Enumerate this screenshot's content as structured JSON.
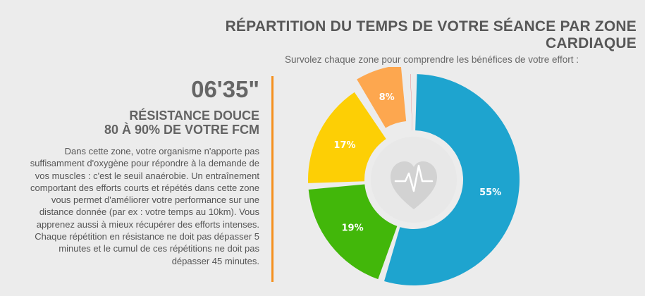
{
  "header": {
    "title": "RÉPARTITION DU TEMPS DE VOTRE SÉANCE PAR ZONE CARDIAQUE",
    "subtitle": "Survolez chaque zone pour comprendre les bénéfices de votre effort :"
  },
  "detail": {
    "time": "06'35\"",
    "zone_name": "RÉSISTANCE DOUCE",
    "zone_range": "80 À 90% DE VOTRE FCM",
    "description": "Dans cette zone, votre organisme n'apporte pas suffisamment d'oxygène pour répondre à la demande de vos muscles : c'est le seuil anaérobie. Un entraînement comportant des efforts courts et répétés dans cette zone vous permet d'améliorer votre performance sur une distance donnée (par ex : votre temps au 10km). Vous apprenez aussi à mieux récupérer des efforts intenses. Chaque répétition en résistance ne doit pas dépasser 5 minutes et le cumul de ces répétitions ne doit pas dépasser 45 minutes."
  },
  "center_icon": "heart-rate-icon",
  "colors": {
    "accent_line": "#f5901e",
    "center_circle": "#e8e8e8",
    "heart_icon": "#d2d2d2"
  },
  "chart_data": {
    "type": "pie",
    "variant": "donut",
    "start": "top",
    "direction": "clockwise",
    "segments": [
      {
        "value": 55,
        "label": "55%",
        "color": "#1ea4cf",
        "highlighted": false
      },
      {
        "value": 19,
        "label": "19%",
        "color": "#42b70a",
        "highlighted": false
      },
      {
        "value": 17,
        "label": "17%",
        "color": "#fdcf05",
        "highlighted": false
      },
      {
        "value": 8,
        "label": "8%",
        "color": "#fda74f",
        "highlighted": true
      },
      {
        "value": 1,
        "label": "",
        "color": "#e21b1b",
        "highlighted": false
      }
    ]
  }
}
